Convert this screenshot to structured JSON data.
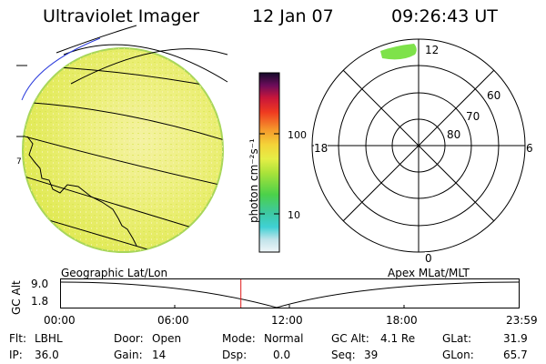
{
  "header": {
    "title": "Ultraviolet Imager",
    "date": "12 Jan 07",
    "time": "09:26:43 UT"
  },
  "colorbar": {
    "unit_label": "photon cm⁻²s⁻¹",
    "ticks": [
      "100",
      "10"
    ]
  },
  "earth_map": {
    "coord_label": "Geographic Lat/Lon",
    "marker_label": "7"
  },
  "polar_plot": {
    "coord_label": "Apex MLat/MLT",
    "mlt_labels": {
      "top": "12",
      "left": "18",
      "right": "6",
      "bottom": "0"
    },
    "lat_labels": [
      "60",
      "70",
      "80"
    ]
  },
  "altitude_plot": {
    "y_axis_label": "GC Alt",
    "y_ticks": [
      "9.0",
      "1.8"
    ],
    "x_ticks": [
      "00:00",
      "06:00",
      "12:00",
      "18:00",
      "23:59"
    ],
    "current_time_fraction": 0.393
  },
  "status": {
    "filter": {
      "label": "Flt:",
      "value": "LBHL"
    },
    "ip": {
      "label": "IP:",
      "value": "36.0"
    },
    "door": {
      "label": "Door:",
      "value": "Open"
    },
    "gain": {
      "label": "Gain:",
      "value": "14"
    },
    "mode": {
      "label": "Mode:",
      "value": "Normal"
    },
    "dsp": {
      "label": "Dsp:",
      "value": "0.0"
    },
    "gc_alt": {
      "label": "GC Alt:",
      "value": "4.1 Re"
    },
    "seq": {
      "label": "Seq:",
      "value": "39"
    },
    "glat": {
      "label": "GLat:",
      "value": "31.9"
    },
    "glon": {
      "label": "GLon:",
      "value": "65.7"
    }
  }
}
